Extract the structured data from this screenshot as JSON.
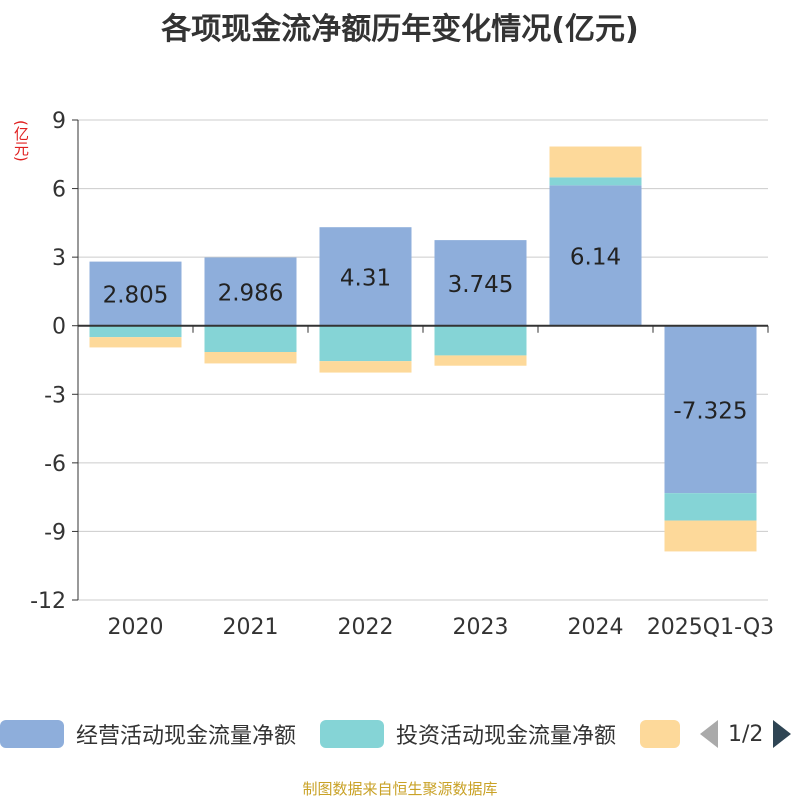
{
  "chart_data": {
    "type": "bar",
    "stacked": true,
    "title": "各项现金流净额历年变化情况(亿元)",
    "ylabel": "(亿元)",
    "xlabel": "",
    "categories": [
      "2020",
      "2021",
      "2022",
      "2023",
      "2024",
      "2025Q1-Q3"
    ],
    "ylim": [
      -12,
      9
    ],
    "yticks": [
      9,
      6,
      3,
      0,
      -3,
      -6,
      -9,
      -12
    ],
    "grid": true,
    "series": [
      {
        "name": "经营活动现金流量净额",
        "color": "#8eaedb",
        "values": [
          2.805,
          2.986,
          4.31,
          3.745,
          6.14,
          -7.325
        ],
        "labels": [
          "2.805",
          "2.986",
          "4.31",
          "3.745",
          "6.14",
          "-7.325"
        ]
      },
      {
        "name": "投资活动现金流量净额",
        "color": "#85d4d6",
        "values": [
          -0.5,
          -1.15,
          -1.55,
          -1.3,
          0.35,
          -1.2
        ]
      },
      {
        "name": "",
        "color": "#fdd99a",
        "values": [
          -0.45,
          -0.5,
          -0.5,
          -0.45,
          1.35,
          -1.35
        ]
      }
    ],
    "legend": {
      "position": "bottom",
      "page": "1/2"
    }
  },
  "source": "制图数据来自恒生聚源数据库"
}
